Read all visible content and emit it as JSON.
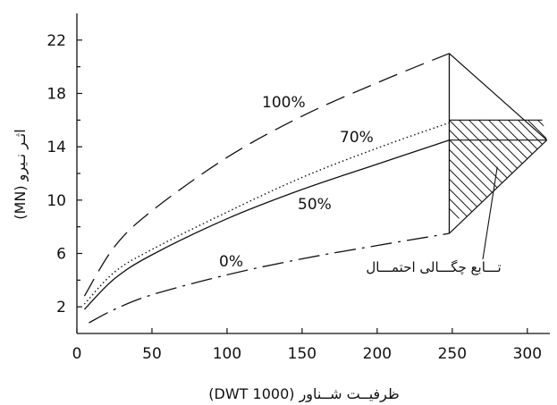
{
  "chart_data": {
    "type": "line",
    "title": "",
    "xlabel": "ظرفیــت شــناور (1000 DWT)",
    "ylabel": "اثـر نـیرو (MN)",
    "xlim": [
      0,
      315
    ],
    "ylim": [
      0,
      24
    ],
    "xticks": [
      0,
      50,
      100,
      150,
      200,
      250,
      300
    ],
    "yticks": [
      2,
      6,
      10,
      14,
      18,
      22
    ],
    "grid": false,
    "series": [
      {
        "name": "100%",
        "style": "dashed",
        "x": [
          5,
          25,
          50,
          100,
          150,
          200,
          248
        ],
        "y": [
          2.8,
          6.5,
          9.2,
          13.2,
          16.3,
          18.8,
          21.0
        ]
      },
      {
        "name": "70%",
        "style": "dotted",
        "x": [
          5,
          25,
          50,
          100,
          150,
          200,
          248
        ],
        "y": [
          2.2,
          4.6,
          6.3,
          9.1,
          11.7,
          13.9,
          15.8
        ]
      },
      {
        "name": "50%",
        "style": "solid",
        "x": [
          5,
          25,
          50,
          100,
          150,
          200,
          248
        ],
        "y": [
          1.8,
          4.1,
          5.9,
          8.6,
          10.8,
          12.7,
          14.5
        ]
      },
      {
        "name": "0%",
        "style": "dash-dot",
        "x": [
          8,
          25,
          50,
          100,
          150,
          200,
          248
        ],
        "y": [
          0.8,
          1.8,
          2.9,
          4.4,
          5.6,
          6.6,
          7.5
        ]
      }
    ],
    "annotations": [
      {
        "text": "تـــابع چگـــالی احتمـــال",
        "arrow_to": [
          280,
          12.5
        ]
      }
    ],
    "density_shape": {
      "x_base": 248,
      "top": 21.0,
      "bottom": 7.5,
      "peak_x": 313,
      "peak_y": 14.5,
      "line_16_end_x": 310,
      "hatch_from": 7.5,
      "hatch_to": 16.0
    }
  }
}
